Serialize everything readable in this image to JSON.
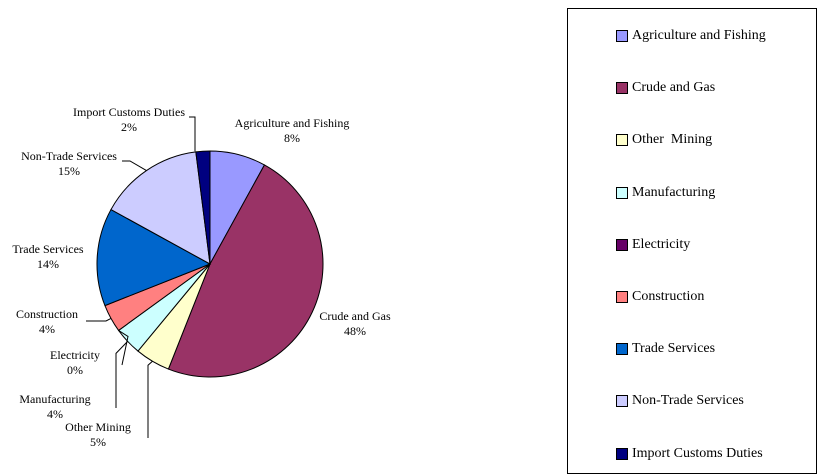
{
  "chart_data": {
    "type": "pie",
    "title": "",
    "categories": [
      "Agriculture and Fishing",
      "Crude and Gas",
      "Other  Mining",
      "Manufacturing",
      "Electricity",
      "Construction",
      "Trade Services",
      "Non-Trade Services",
      "Import Customs Duties"
    ],
    "values": [
      8,
      48,
      5,
      4,
      0,
      4,
      14,
      15,
      2
    ],
    "labels": [
      "8%",
      "48%",
      "5%",
      "4%",
      "0%",
      "4%",
      "14%",
      "15%",
      "2%"
    ],
    "colors": [
      "#9999FF",
      "#993366",
      "#FFFFCC",
      "#CCFFFF",
      "#660066",
      "#FF8080",
      "#0066CC",
      "#CCCCFF",
      "#000080"
    ],
    "legend_position": "right",
    "legend": [
      {
        "name": "Agriculture and Fishing",
        "color": "#9999FF"
      },
      {
        "name": "Crude and Gas",
        "color": "#993366"
      },
      {
        "name": "Other  Mining",
        "color": "#FFFFCC"
      },
      {
        "name": "Manufacturing",
        "color": "#CCFFFF"
      },
      {
        "name": "Electricity",
        "color": "#660066"
      },
      {
        "name": "Construction",
        "color": "#FF8080"
      },
      {
        "name": "Trade Services",
        "color": "#0066CC"
      },
      {
        "name": "Non-Trade Services",
        "color": "#CCCCFF"
      },
      {
        "name": "Import Customs Duties",
        "color": "#000080"
      }
    ]
  }
}
